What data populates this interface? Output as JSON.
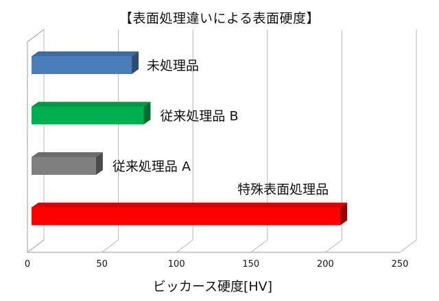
{
  "chart_data": {
    "type": "bar",
    "orientation": "horizontal",
    "title": "【表面処理違いによる表面硬度】",
    "xlabel": "ビッカース硬度[HV]",
    "ylabel": "",
    "xlim": [
      0,
      250
    ],
    "x_ticks": [
      "0",
      "50",
      "100",
      "150",
      "200",
      "250"
    ],
    "grid": true,
    "legend": "none",
    "categories": [
      "未処理品",
      "従来処理品 B",
      "従来処理品 A",
      "特殊表面処理品"
    ],
    "values": [
      70,
      78,
      46,
      210
    ],
    "colors": [
      "#4a7ebb",
      "#00b050",
      "#7f7f7f",
      "#ff0000"
    ]
  }
}
